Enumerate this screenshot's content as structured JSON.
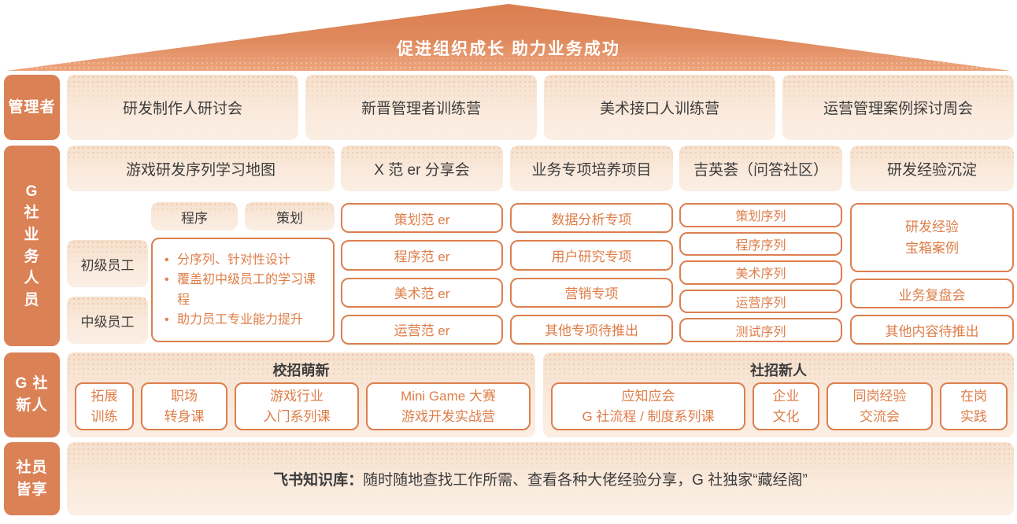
{
  "colors": {
    "accent_orange": "#db8156",
    "outline_orange": "#dc7f4f",
    "orange_text": "#de7e49",
    "cream_bg": "#faeadc",
    "dark_text": "#3c3c3c"
  },
  "roof": {
    "title": "促进组织成长 助力业务成功"
  },
  "row_manager": {
    "label": "管理者",
    "items": [
      "研发制作人研讨会",
      "新晋管理者训练营",
      "美术接口人训练营",
      "运营管理案例探讨周会"
    ]
  },
  "row_business": {
    "label_chars": [
      "G",
      "社",
      "业",
      "务",
      "人",
      "员"
    ],
    "col_map": {
      "header": "游戏研发序列学习地图",
      "tabs": [
        "程序",
        "策划"
      ],
      "levels": [
        "初级员工",
        "中级员工"
      ],
      "bullets": [
        "分序列、针对性设计",
        "覆盖初中级员工的学习课程",
        "助力员工专业能力提升"
      ]
    },
    "col_fan": {
      "header": "X 范 er 分享会",
      "items": [
        "策划范 er",
        "程序范 er",
        "美术范 er",
        "运营范 er"
      ]
    },
    "col_special": {
      "header": "业务专项培养项目",
      "items": [
        "数据分析专项",
        "用户研究专项",
        "营销专项",
        "其他专项待推出"
      ]
    },
    "col_qa": {
      "header": "吉英荟（问答社区）",
      "items": [
        "策划序列",
        "程序序列",
        "美术序列",
        "运营序列",
        "测试序列"
      ]
    },
    "col_exp": {
      "header": "研发经验沉淀",
      "box_lines": [
        "研发经验",
        "宝箱案例"
      ],
      "items": [
        "业务复盘会",
        "其他内容待推出"
      ]
    }
  },
  "row_newbie": {
    "label_lines": [
      "G 社",
      "新人"
    ],
    "campus": {
      "header": "校招萌新",
      "items": [
        [
          "拓展",
          "训练"
        ],
        [
          "职场",
          "转身课"
        ],
        [
          "游戏行业",
          "入门系列课"
        ],
        [
          "Mini Game 大赛",
          "游戏开发实战营"
        ]
      ]
    },
    "social": {
      "header": "社招新人",
      "items": [
        [
          "应知应会",
          "G 社流程 / 制度系列课"
        ],
        [
          "企业",
          "文化"
        ],
        [
          "同岗经验",
          "交流会"
        ],
        [
          "在岗",
          "实践"
        ]
      ]
    }
  },
  "row_all": {
    "label_lines": [
      "社员",
      "皆享"
    ],
    "bold": "飞书知识库：",
    "rest": "随时随地查找工作所需、查看各种大佬经验分享，G 社独家“藏经阁”"
  }
}
